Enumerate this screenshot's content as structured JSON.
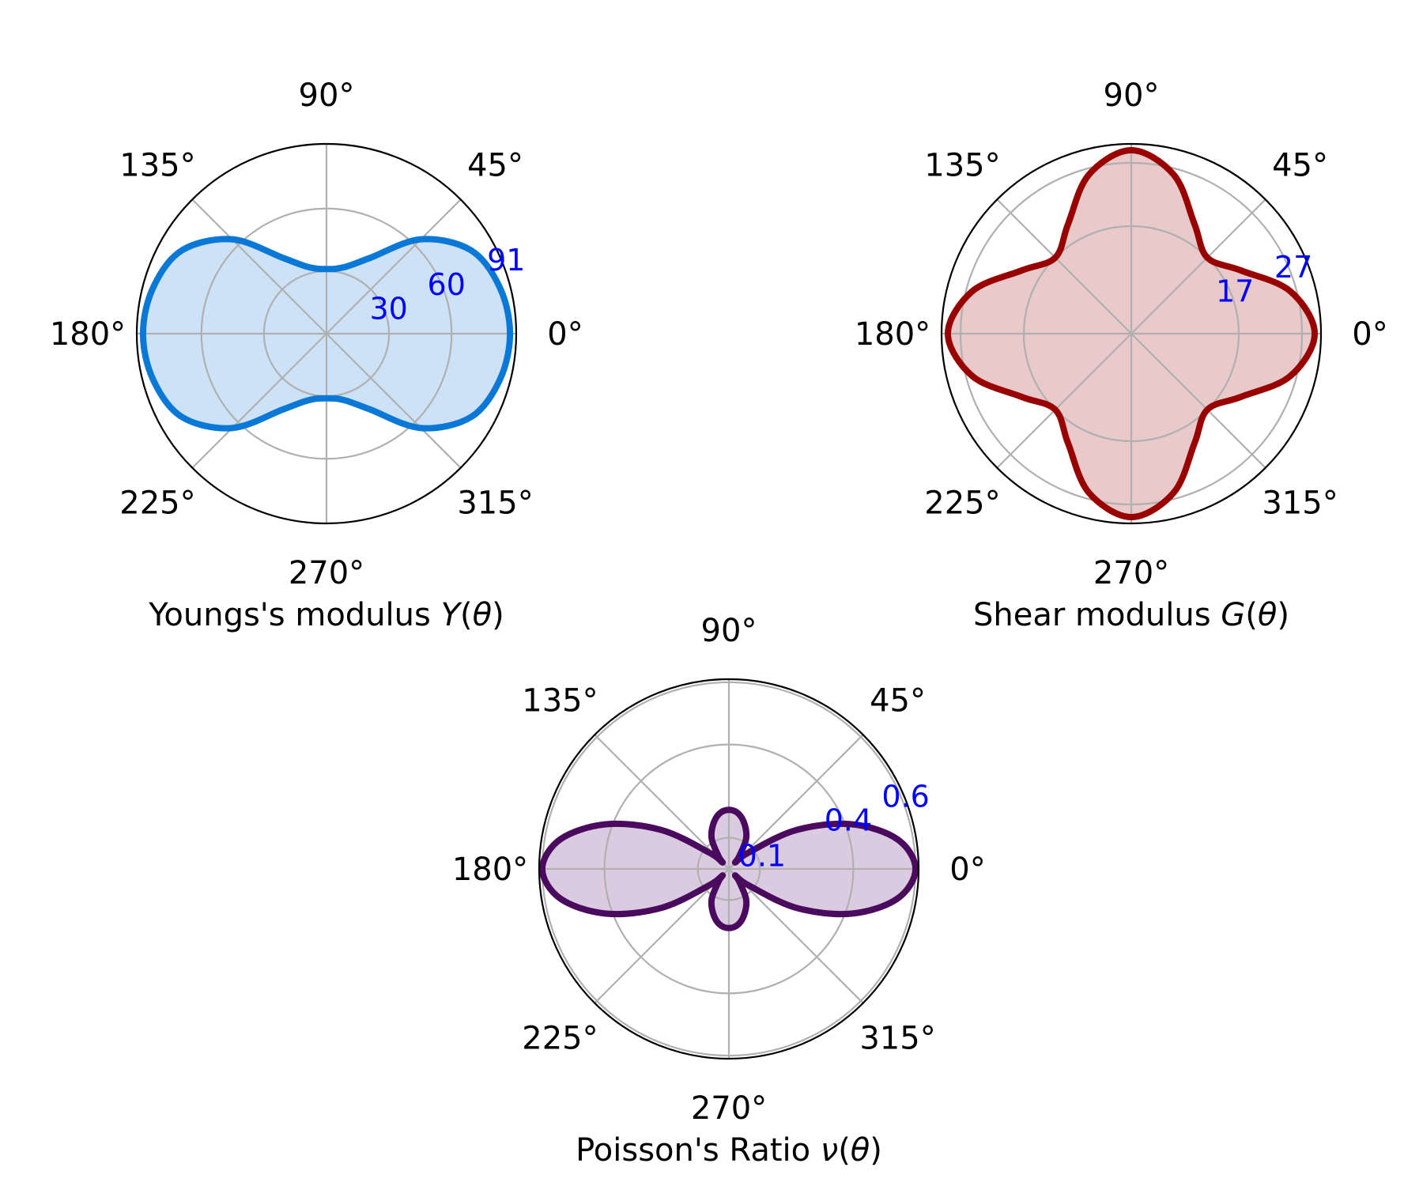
{
  "chart_data": [
    {
      "type": "polar",
      "xlabel_parts": [
        {
          "text": "Youngs's modulus ",
          "italic": false
        },
        {
          "text": "Y",
          "italic": true
        },
        {
          "text": "(",
          "italic": false
        },
        {
          "text": "θ",
          "italic": true
        },
        {
          "text": ")",
          "italic": false
        }
      ],
      "theta_ticks": [
        "0°",
        "45°",
        "90°",
        "135°",
        "180°",
        "225°",
        "270°",
        "315°"
      ],
      "r_ticks": [
        {
          "value": 30,
          "label": "30"
        },
        {
          "value": 60,
          "label": "60"
        },
        {
          "value": 91,
          "label": "91"
        }
      ],
      "rlim": [
        0,
        91
      ],
      "grid": true,
      "series": [
        {
          "theta_deg": [
            0,
            15,
            30,
            45,
            60,
            75,
            90,
            105,
            120,
            135,
            150,
            165,
            180,
            195,
            210,
            225,
            240,
            255,
            270,
            285,
            300,
            315,
            330,
            345
          ],
          "r": [
            88,
            86,
            80,
            64,
            42,
            33,
            31,
            33,
            42,
            64,
            80,
            86,
            88,
            86,
            80,
            64,
            42,
            33,
            31,
            33,
            42,
            64,
            80,
            86
          ],
          "line_color": "#0a78d7",
          "fill_color": "#cde2f6"
        }
      ],
      "rtick_color": "#0000ff"
    },
    {
      "type": "polar",
      "xlabel_parts": [
        {
          "text": "Shear modulus ",
          "italic": false
        },
        {
          "text": "G",
          "italic": true
        },
        {
          "text": "(",
          "italic": false
        },
        {
          "text": "θ",
          "italic": true
        },
        {
          "text": ")",
          "italic": false
        }
      ],
      "theta_ticks": [
        "0°",
        "45°",
        "90°",
        "135°",
        "180°",
        "225°",
        "270°",
        "315°"
      ],
      "r_ticks": [
        {
          "value": 17,
          "label": "17"
        },
        {
          "value": 27,
          "label": "27"
        }
      ],
      "rlim": [
        0,
        30
      ],
      "grid": true,
      "series": [
        {
          "theta_deg": [
            0,
            15,
            30,
            45,
            60,
            75,
            90,
            105,
            120,
            135,
            150,
            165,
            180,
            195,
            210,
            225,
            240,
            255,
            270,
            285,
            300,
            315,
            330,
            345
          ],
          "r": [
            29,
            26,
            20,
            17,
            20,
            26,
            29,
            26,
            20,
            17,
            20,
            26,
            29,
            26,
            20,
            17,
            20,
            26,
            29,
            26,
            20,
            17,
            20,
            26
          ],
          "line_color": "#990000",
          "fill_color": "#e9c9ca"
        }
      ],
      "rtick_color": "#0000ff"
    },
    {
      "type": "polar",
      "xlabel_parts": [
        {
          "text": "Poisson's Ratio ",
          "italic": false
        },
        {
          "text": "ν",
          "italic": true
        },
        {
          "text": "(",
          "italic": false
        },
        {
          "text": "θ",
          "italic": true
        },
        {
          "text": ")",
          "italic": false
        }
      ],
      "theta_ticks": [
        "0°",
        "45°",
        "90°",
        "135°",
        "180°",
        "225°",
        "270°",
        "315°"
      ],
      "r_ticks": [
        {
          "value": 0.1,
          "label": "0.1"
        },
        {
          "value": 0.4,
          "label": "0.4"
        },
        {
          "value": 0.6,
          "label": "0.6"
        }
      ],
      "rlim": [
        0,
        0.61
      ],
      "grid": true,
      "series": [
        {
          "theta_deg": [
            0,
            10,
            20,
            30,
            40,
            45,
            50,
            60,
            70,
            80,
            90,
            100,
            110,
            120,
            130,
            135,
            140,
            150,
            160,
            170,
            180,
            190,
            200,
            210,
            220,
            225,
            230,
            240,
            250,
            260,
            270,
            280,
            290,
            300,
            310,
            315,
            320,
            330,
            340,
            350
          ],
          "r": [
            0.6,
            0.55,
            0.42,
            0.25,
            0.08,
            0.03,
            0.05,
            0.11,
            0.15,
            0.18,
            0.19,
            0.18,
            0.15,
            0.11,
            0.05,
            0.03,
            0.08,
            0.25,
            0.42,
            0.55,
            0.6,
            0.55,
            0.42,
            0.25,
            0.08,
            0.03,
            0.05,
            0.11,
            0.15,
            0.18,
            0.19,
            0.18,
            0.15,
            0.11,
            0.05,
            0.03,
            0.08,
            0.25,
            0.42,
            0.55
          ],
          "line_color": "#4a0a5e",
          "fill_color": "#dbcbe0"
        }
      ],
      "rtick_color": "#0000ff"
    }
  ]
}
